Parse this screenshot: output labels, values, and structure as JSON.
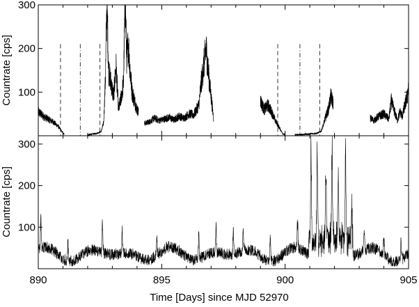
{
  "chart_data": [
    {
      "type": "line",
      "panel": "top",
      "ylabel": "Countrate [cps]",
      "ylim": [
        0,
        300
      ],
      "yticks": [
        100,
        200,
        300
      ],
      "xlim": [
        890,
        905
      ],
      "x_tick_labels_shown": false,
      "segments": [
        {
          "x": [
            890.0,
            890.2,
            890.4,
            890.6,
            890.8,
            890.95,
            891.05
          ],
          "y": [
            55,
            45,
            38,
            32,
            22,
            10,
            4
          ]
        },
        {
          "x": [
            892.0,
            892.2,
            892.4,
            892.55,
            892.65,
            892.72,
            892.78,
            892.85,
            892.95,
            893.05,
            893.15,
            893.25,
            893.35,
            893.45,
            893.52,
            893.58,
            893.65,
            893.72,
            893.8,
            893.9,
            894.0,
            894.06
          ],
          "y": [
            2,
            4,
            6,
            10,
            30,
            130,
            310,
            150,
            120,
            90,
            160,
            60,
            85,
            120,
            310,
            180,
            210,
            150,
            100,
            80,
            60,
            55
          ]
        },
        {
          "x": [
            894.3,
            894.5,
            894.7,
            894.9,
            895.1,
            895.3,
            895.5,
            895.7,
            895.9,
            896.1,
            896.3,
            896.5,
            896.6,
            896.7,
            896.8,
            896.9,
            897.0,
            897.1
          ],
          "y": [
            28,
            32,
            40,
            35,
            38,
            42,
            36,
            45,
            40,
            50,
            48,
            70,
            120,
            160,
            200,
            140,
            90,
            40
          ]
        },
        {
          "x": [
            899.0,
            899.15,
            899.3,
            899.45,
            899.6,
            899.75,
            899.9,
            900.0
          ],
          "y": [
            80,
            60,
            70,
            55,
            35,
            20,
            5,
            2
          ]
        },
        {
          "x": [
            900.4,
            900.7,
            901.0,
            901.3,
            901.45,
            901.55,
            901.65,
            901.75,
            901.85,
            901.95
          ],
          "y": [
            2,
            3,
            4,
            6,
            10,
            25,
            45,
            60,
            90,
            75
          ]
        },
        {
          "x": [
            903.45,
            903.6,
            903.8,
            904.0,
            904.2,
            904.3,
            904.4,
            904.55,
            904.65,
            904.75,
            904.85,
            904.95,
            905.0
          ],
          "y": [
            40,
            35,
            45,
            50,
            38,
            80,
            60,
            35,
            55,
            45,
            70,
            90,
            120
          ]
        }
      ],
      "dashed_markers_x": [
        890.9,
        892.5,
        899.7,
        901.4
      ],
      "dashdot_markers_x": [
        891.7,
        900.6
      ],
      "marker_top_y": 210
    },
    {
      "type": "line",
      "panel": "bottom",
      "ylabel": "Countrate [cps]",
      "xlabel": "Time [Days] since MJD 52970",
      "ylim": [
        0,
        320
      ],
      "yticks": [
        100,
        200,
        300
      ],
      "xlim": [
        890,
        905
      ],
      "xticks": [
        890,
        895,
        900,
        905
      ],
      "baseline_level": 35,
      "peaks": [
        {
          "x": 890.1,
          "y": 120
        },
        {
          "x": 891.2,
          "y": 90
        },
        {
          "x": 892.6,
          "y": 130
        },
        {
          "x": 893.4,
          "y": 95
        },
        {
          "x": 894.8,
          "y": 95
        },
        {
          "x": 896.5,
          "y": 100
        },
        {
          "x": 897.2,
          "y": 110
        },
        {
          "x": 897.9,
          "y": 105
        },
        {
          "x": 898.3,
          "y": 95
        },
        {
          "x": 899.4,
          "y": 100
        },
        {
          "x": 900.5,
          "y": 110
        },
        {
          "x": 901.05,
          "y": 320
        },
        {
          "x": 901.3,
          "y": 310
        },
        {
          "x": 901.65,
          "y": 240
        },
        {
          "x": 901.9,
          "y": 300
        },
        {
          "x": 902.15,
          "y": 230
        },
        {
          "x": 902.45,
          "y": 290
        },
        {
          "x": 902.7,
          "y": 150
        },
        {
          "x": 903.2,
          "y": 95
        },
        {
          "x": 904.0,
          "y": 90
        },
        {
          "x": 904.7,
          "y": 95
        }
      ]
    }
  ]
}
